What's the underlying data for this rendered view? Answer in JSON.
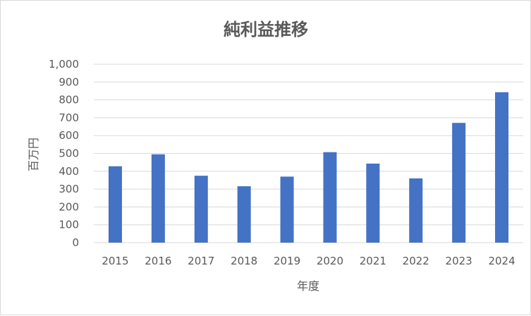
{
  "chart_data": {
    "type": "bar",
    "title": "純利益推移",
    "xlabel": "年度",
    "ylabel": "百万円",
    "categories": [
      "2015",
      "2016",
      "2017",
      "2018",
      "2019",
      "2020",
      "2021",
      "2022",
      "2023",
      "2024"
    ],
    "series": [
      {
        "values": [
          428,
          495,
          375,
          316,
          370,
          507,
          443,
          360,
          671,
          843
        ],
        "color": "#4472C4"
      }
    ],
    "ylim": [
      0,
      1000
    ],
    "yticks": [
      "0",
      "100",
      "200",
      "300",
      "400",
      "500",
      "600",
      "700",
      "800",
      "900",
      "1,000"
    ],
    "grid": true,
    "legend": "none"
  }
}
